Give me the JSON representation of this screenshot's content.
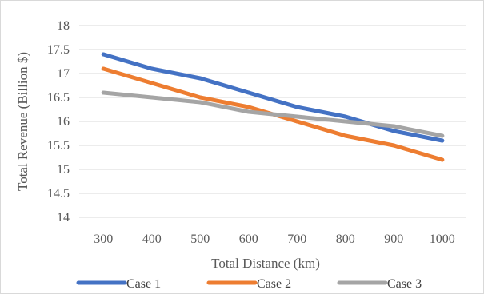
{
  "chart_data": {
    "type": "line",
    "x": [
      300,
      400,
      500,
      600,
      700,
      800,
      900,
      1000
    ],
    "series": [
      {
        "name": "Case 1",
        "color": "#4472C4",
        "values": [
          17.4,
          17.1,
          16.9,
          16.6,
          16.3,
          16.1,
          15.8,
          15.6
        ]
      },
      {
        "name": "Case 2",
        "color": "#ED7D31",
        "values": [
          17.1,
          16.8,
          16.5,
          16.3,
          16.0,
          15.7,
          15.5,
          15.2
        ]
      },
      {
        "name": "Case 3",
        "color": "#A5A5A5",
        "values": [
          16.6,
          16.5,
          16.4,
          16.2,
          16.1,
          16.0,
          15.9,
          15.7
        ]
      }
    ],
    "xlabel": "Total Distance (km)",
    "ylabel": "Total Revenue (Billion $)",
    "ylim": [
      14,
      18
    ],
    "yticks": [
      "14",
      "14.5",
      "15",
      "15.5",
      "16",
      "16.5",
      "17",
      "17.5",
      "18"
    ],
    "xticks": [
      "300",
      "400",
      "500",
      "600",
      "700",
      "800",
      "900",
      "1000"
    ],
    "grid": true,
    "legend": "bottom"
  }
}
